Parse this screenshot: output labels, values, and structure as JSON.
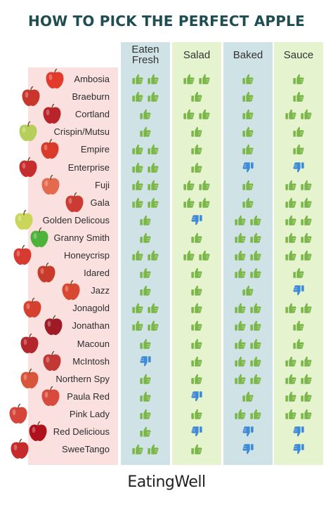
{
  "title": "HOW TO PICK THE PERFECT APPLE",
  "columns": [
    {
      "key": "eaten_fresh",
      "label": "Eaten\nFresh",
      "bg": "#cfe3e6"
    },
    {
      "key": "salad",
      "label": "Salad",
      "bg": "#e6f3cf"
    },
    {
      "key": "baked",
      "label": "Baked",
      "bg": "#cfe3e6"
    },
    {
      "key": "sauce",
      "label": "Sauce",
      "bg": "#e6f3cf"
    }
  ],
  "rating_legend": {
    "up": "thumbs-up-icon",
    "down": "thumbs-down-icon"
  },
  "colors": {
    "title": "#1f4e52",
    "thumb_up": "#7ab648",
    "thumb_down": "#3e8ad6",
    "name_band": "#fbe0e0"
  },
  "apples": [
    {
      "name": "Ambosia",
      "ratings": [
        2,
        2,
        1,
        1
      ],
      "color": "#e23a2b"
    },
    {
      "name": "Braeburn",
      "ratings": [
        2,
        1,
        1,
        1
      ],
      "color": "#c8352a"
    },
    {
      "name": "Cortland",
      "ratings": [
        1,
        2,
        1,
        2
      ],
      "color": "#b8242a"
    },
    {
      "name": "Crispin/Mutsu",
      "ratings": [
        1,
        1,
        1,
        1
      ],
      "color": "#b6cf5a"
    },
    {
      "name": "Empire",
      "ratings": [
        2,
        1,
        1,
        1
      ],
      "color": "#d93a2a"
    },
    {
      "name": "Enterprise",
      "ratings": [
        2,
        1,
        -1,
        -1
      ],
      "color": "#c62d2d"
    },
    {
      "name": "Fuji",
      "ratings": [
        2,
        2,
        1,
        2
      ],
      "color": "#e36a4e"
    },
    {
      "name": "Gala",
      "ratings": [
        2,
        2,
        1,
        2
      ],
      "color": "#cc3a34"
    },
    {
      "name": "Golden Delicous",
      "ratings": [
        1,
        -1,
        2,
        2
      ],
      "color": "#c9d65a"
    },
    {
      "name": "Granny Smith",
      "ratings": [
        1,
        1,
        2,
        2
      ],
      "color": "#4db33a"
    },
    {
      "name": "Honeycrisp",
      "ratings": [
        2,
        2,
        2,
        2
      ],
      "color": "#d63a30"
    },
    {
      "name": "Idared",
      "ratings": [
        1,
        1,
        2,
        1
      ],
      "color": "#c83a2a"
    },
    {
      "name": "Jazz",
      "ratings": [
        1,
        1,
        1,
        -1
      ],
      "color": "#d8472f"
    },
    {
      "name": "Jonagold",
      "ratings": [
        2,
        1,
        2,
        2
      ],
      "color": "#d6402e"
    },
    {
      "name": "Jonathan",
      "ratings": [
        2,
        1,
        2,
        1
      ],
      "color": "#9e1a24"
    },
    {
      "name": "Macoun",
      "ratings": [
        1,
        1,
        2,
        1
      ],
      "color": "#b3262c"
    },
    {
      "name": "McIntosh",
      "ratings": [
        -1,
        1,
        2,
        2
      ],
      "color": "#c23835"
    },
    {
      "name": "Northern Spy",
      "ratings": [
        1,
        1,
        2,
        2
      ],
      "color": "#d9553a"
    },
    {
      "name": "Paula Red",
      "ratings": [
        1,
        -1,
        1,
        2
      ],
      "color": "#d84a3c"
    },
    {
      "name": "Pink Lady",
      "ratings": [
        1,
        1,
        2,
        2
      ],
      "color": "#d6453a"
    },
    {
      "name": "Red Delicious",
      "ratings": [
        1,
        -1,
        -1,
        -1
      ],
      "color": "#b0101c"
    },
    {
      "name": "SweeTango",
      "ratings": [
        2,
        1,
        -1,
        -1
      ],
      "color": "#c72a2a"
    }
  ],
  "brand": "EatingWell"
}
